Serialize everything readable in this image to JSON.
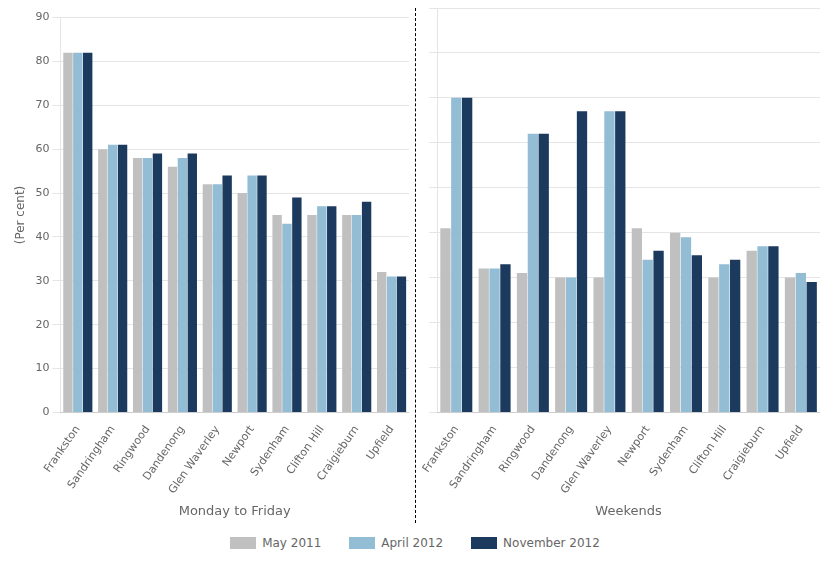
{
  "chart_data": [
    {
      "type": "bar",
      "xlabel": "Monday to Friday",
      "ylabel": "(Per cent)",
      "categories": [
        "Frankston",
        "Sandringham",
        "Ringwood",
        "Dandenong",
        "Glen Waverley",
        "Newport",
        "Sydenham",
        "Clifton Hill",
        "Craigieburn",
        "Upfield"
      ],
      "series": [
        {
          "name": "May 2011",
          "color": "#c0c0c0",
          "values": [
            82,
            60,
            58,
            56,
            52,
            50,
            45,
            45,
            45,
            32
          ]
        },
        {
          "name": "April 2012",
          "color": "#92bdd4",
          "values": [
            82,
            61,
            58,
            58,
            52,
            54,
            43,
            47,
            45,
            31
          ]
        },
        {
          "name": "November 2012",
          "color": "#1b3a5e",
          "values": [
            82,
            61,
            59,
            59,
            54,
            54,
            49,
            47,
            48,
            31
          ]
        }
      ],
      "ylim": [
        0,
        90
      ],
      "yticks": [
        0,
        10,
        20,
        30,
        40,
        50,
        60,
        70,
        80,
        90
      ],
      "grid": true,
      "legend": "bottom"
    },
    {
      "type": "bar",
      "xlabel": "Weekends",
      "categories": [
        "Frankston",
        "Sandringham",
        "Ringwood",
        "Dandenong",
        "Glen Waverley",
        "Newport",
        "Sydenham",
        "Clifton Hill",
        "Craigieburn",
        "Upfield"
      ],
      "series": [
        {
          "name": "May 2011",
          "color": "#c0c0c0",
          "values": [
            41,
            32,
            31,
            30,
            30,
            41,
            40,
            30,
            36,
            30
          ]
        },
        {
          "name": "April 2012",
          "color": "#92bdd4",
          "values": [
            70,
            32,
            62,
            30,
            67,
            34,
            39,
            33,
            37,
            31
          ]
        },
        {
          "name": "November 2012",
          "color": "#1b3a5e",
          "values": [
            70,
            33,
            62,
            67,
            67,
            36,
            35,
            34,
            37,
            29
          ]
        }
      ],
      "ylim": [
        0,
        90
      ],
      "yticks": [
        0,
        10,
        20,
        30,
        40,
        50,
        60,
        70,
        80,
        90
      ],
      "grid": true,
      "tick_labels": "x"
    }
  ]
}
